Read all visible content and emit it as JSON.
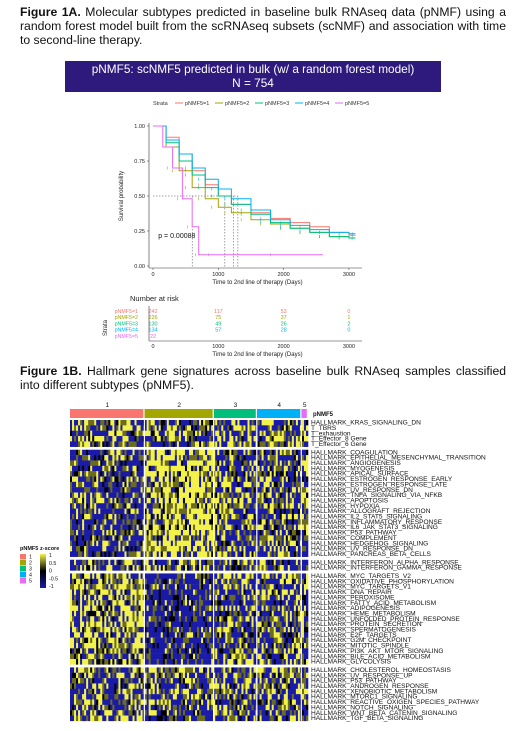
{
  "figA": {
    "label": "Figure 1A.",
    "text": "Molecular subtypes predicted in baseline bulk RNAseq data (pNMF) using a random forest model built from the scRNAseq subsets (scNMF) and association with time to second-line therapy.",
    "banner_line1": "pNMF5: scNMF5 predicted in bulk (w/ a random forest model)",
    "banner_line2": "N = 754"
  },
  "figB": {
    "label": "Figure 1B.",
    "text": "Hallmark gene signatures across baseline bulk RNAseq samples classified into different subtypes (pNMF5)."
  },
  "chart_data": [
    {
      "type": "line",
      "title": "pNMF5: scNMF5 predicted in bulk (w/ a random forest model)",
      "subtitle": "N = 754",
      "legend_title": "Strata",
      "legend_position": "top",
      "xlabel": "Time to 2nd line of therapy (Days)",
      "ylabel": "Survival probability",
      "xlim": [
        0,
        3200
      ],
      "ylim": [
        0,
        1
      ],
      "xticks": [
        "0",
        "1000",
        "2000",
        "3000"
      ],
      "yticks": [
        "0.00",
        "0.25",
        "0.50",
        "0.75",
        "1.00"
      ],
      "pvalue": "p = 0.00088",
      "series": [
        {
          "name": "pNMF5=1",
          "color": "#f8766d",
          "x": [
            0,
            200,
            400,
            600,
            800,
            1000,
            1200,
            1500,
            1800,
            2100,
            2400,
            2700,
            3000,
            3100
          ],
          "y": [
            1.0,
            0.92,
            0.8,
            0.68,
            0.58,
            0.5,
            0.44,
            0.38,
            0.34,
            0.31,
            0.28,
            0.24,
            0.22,
            0.22
          ]
        },
        {
          "name": "pNMF5=2",
          "color": "#a3a500",
          "x": [
            0,
            200,
            400,
            600,
            800,
            1000,
            1200,
            1500,
            1800,
            2100,
            2400,
            2700,
            3000,
            3100
          ],
          "y": [
            1.0,
            0.85,
            0.68,
            0.56,
            0.48,
            0.42,
            0.38,
            0.33,
            0.3,
            0.27,
            0.24,
            0.21,
            0.2,
            0.2
          ]
        },
        {
          "name": "pNMF5=3",
          "color": "#00bf7d",
          "x": [
            0,
            200,
            400,
            600,
            800,
            1000,
            1200,
            1500,
            1800,
            2100,
            2400,
            2700,
            3000,
            3100
          ],
          "y": [
            1.0,
            0.88,
            0.75,
            0.65,
            0.56,
            0.5,
            0.44,
            0.37,
            0.31,
            0.27,
            0.24,
            0.21,
            0.2,
            0.2
          ]
        },
        {
          "name": "pNMF5=4",
          "color": "#00b0f6",
          "x": [
            0,
            200,
            400,
            600,
            800,
            1000,
            1200,
            1500,
            1800,
            2100,
            2400,
            2700,
            3000,
            3100
          ],
          "y": [
            1.0,
            0.9,
            0.8,
            0.7,
            0.62,
            0.55,
            0.48,
            0.4,
            0.33,
            0.29,
            0.26,
            0.24,
            0.23,
            0.23
          ]
        },
        {
          "name": "pNMF5=5",
          "color": "#e76bf3",
          "x": [
            0,
            150,
            300,
            450,
            600,
            700,
            1000,
            2600
          ],
          "y": [
            1.0,
            0.85,
            0.7,
            0.48,
            0.28,
            0.08,
            0.08,
            0.08
          ]
        }
      ],
      "risk_table": {
        "title": "Number at risk",
        "ylabel": "Strata",
        "xlabel": "Time to 2nd line of therapy (Days)",
        "times": [
          0,
          1000,
          2000,
          3000
        ],
        "rows": [
          {
            "name": "pNMF5=1",
            "values": [
              "242",
              "117",
              "53",
              "0"
            ]
          },
          {
            "name": "pNMF5=2",
            "values": [
              "226",
              "75",
              "37",
              "1"
            ]
          },
          {
            "name": "pNMF5=3",
            "values": [
              "130",
              "49",
              "26",
              "2"
            ]
          },
          {
            "name": "pNMF5=4",
            "values": [
              "134",
              "57",
              "28",
              "0"
            ]
          },
          {
            "name": "pNMF5=5",
            "values": [
              "22",
              "",
              "",
              ""
            ]
          }
        ]
      }
    },
    {
      "type": "heatmap",
      "groups": [
        {
          "name": "1",
          "color": "#f8766d",
          "fraction": 0.285
        },
        {
          "name": "2",
          "color": "#a3a500",
          "fraction": 0.265
        },
        {
          "name": "3",
          "color": "#00bf7d",
          "fraction": 0.165
        },
        {
          "name": "4",
          "color": "#00b0f6",
          "fraction": 0.17
        },
        {
          "name": "5",
          "color": "#e76bf3",
          "fraction": 0.025
        }
      ],
      "annotation_title": "pNMF5",
      "legend_groups_title": "pNMF5",
      "legend_groups": [
        "1",
        "2",
        "3",
        "4",
        "5"
      ],
      "legend_scale_title": "z-score",
      "legend_scale_ticks": [
        "1",
        "0.5",
        "0",
        "-0.5",
        "-1"
      ],
      "colors": {
        "low": "#1a1aa8",
        "mid": "#000000",
        "high": "#f2f24a"
      },
      "row_blocks": [
        {
          "rows": [
            "HALLMARK_KRAS_SIGNALING_DN",
            "T_TBRS",
            "T_exhaustion",
            "T_Effector_8 Gene",
            "T_Effector_6 Gene"
          ]
        },
        {
          "rows": [
            "HALLMARK_COAGULATION",
            "HALLMARK_EPITHELIAL_MESENCHYMAL_TRANSITION",
            "HALLMARK_ANGIOGENESIS",
            "HALLMARK_MYOGENESIS",
            "HALLMARK_APICAL_SURFACE",
            "HALLMARK_ESTROGEN_RESPONSE_EARLY",
            "HALLMARK_ESTROGEN_RESPONSE_LATE",
            "HALLMARK_UV_RESPONSE_DN",
            "HALLMARK_TNFA_SIGNALING_VIA_NFKB",
            "HALLMARK_APOPTOSIS",
            "HALLMARK_HYPOXIA",
            "HALLMARK_ALLOGRAFT_REJECTION",
            "HALLMARK_IL2_STAT5_SIGNALING",
            "HALLMARK_INFLAMMATORY_RESPONSE",
            "HALLMARK_IL6_JAK_STAT3_SIGNALING",
            "HALLMARK_P53_PATHWAY",
            "HALLMARK_COMPLEMENT",
            "HALLMARK_HEDGEHOG_SIGNALING",
            "HALLMARK_UV_RESPONSE_DN",
            "HALLMARK_PANCREAS_BETA_CELLS"
          ]
        },
        {
          "rows": [
            "HALLMARK_INTERFERON_ALPHA_RESPONSE",
            "HALLMARK_INTERFERON_GAMMA_RESPONSE"
          ]
        },
        {
          "rows": [
            "HALLMARK_MYC_TARGETS_V2",
            "HALLMARK_OXIDATIVE_PHOSPHORYLATION",
            "HALLMARK_MYC_TARGETS_V1",
            "HALLMARK_DNA_REPAIR",
            "HALLMARK_PEROXISOME",
            "HALLMARK_FATTY_ACID_METABOLISM",
            "HALLMARK_ADIPOGENESIS",
            "HALLMARK_HEME_METABOLISM",
            "HALLMARK_UNFOLDED_PROTEIN_RESPONSE",
            "HALLMARK_PROTEIN_SECRETION",
            "HALLMARK_SPERMATOGENESIS",
            "HALLMARK_E2F_TARGETS",
            "HALLMARK_G2M_CHECKPOINT",
            "HALLMARK_MITOTIC_SPINDLE",
            "HALLMARK_PI3K_AKT_MTOR_SIGNALING",
            "HALLMARK_BILE_ACID_METABOLISM",
            "HALLMARK_GLYCOLYSIS"
          ]
        },
        {
          "rows": [
            "HALLMARK_CHOLESTEROL_HOMEOSTASIS",
            "HALLMARK_UV_RESPONSE_UP",
            "HALLMARK_P53_PATHWAY",
            "HALLMARK_ANDROGEN_RESPONSE",
            "HALLMARK_XENOBIOTIC_METABOLISM",
            "HALLMARK_MTORC1_SIGNALING",
            "HALLMARK_REACTIVE_OXIGEN_SPECIES_PATHWAY",
            "HALLMARK_NOTCH_SIGNALING",
            "HALLMARK_WNT_BETA_CATENIN_SIGNALING",
            "HALLMARK_TGF_BETA_SIGNALING"
          ]
        }
      ]
    }
  ]
}
